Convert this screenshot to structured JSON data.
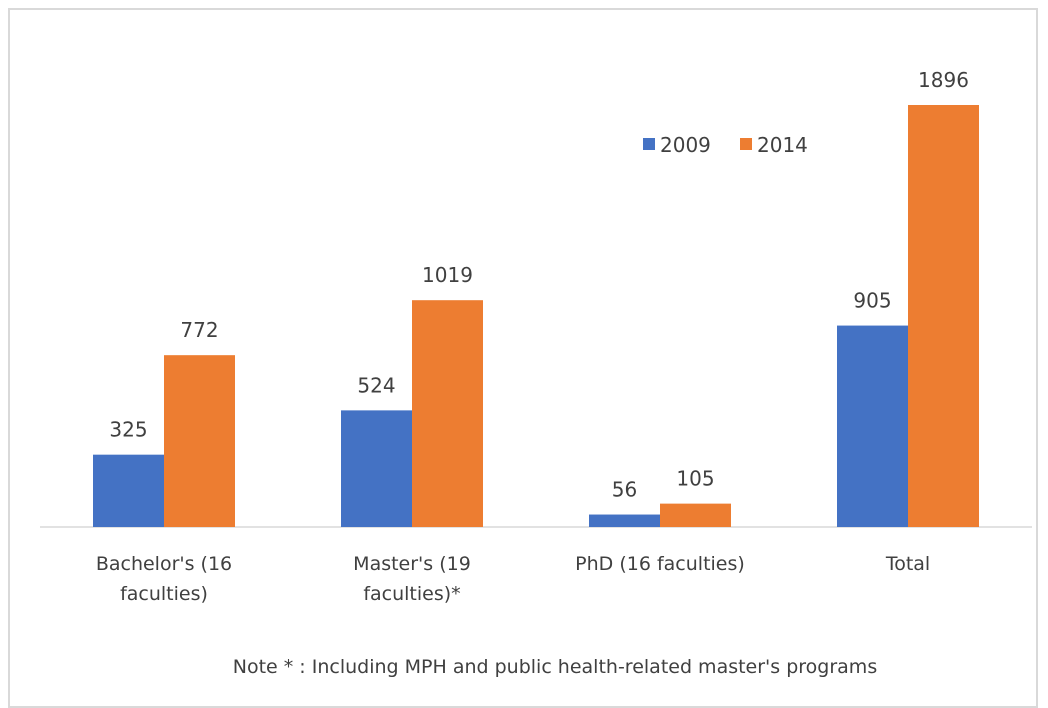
{
  "chart_data": {
    "type": "bar",
    "categories": [
      "Bachelor's (16 faculties)",
      "Master's (19 faculties)*",
      "PhD (16 faculties)",
      "Total"
    ],
    "series": [
      {
        "name": "2009",
        "color": "#4472c4",
        "values": [
          325,
          524,
          56,
          905
        ]
      },
      {
        "name": "2014",
        "color": "#ed7d31",
        "values": [
          772,
          1019,
          105,
          1896
        ]
      }
    ],
    "annotation": "Note * : Including MPH and public health-related master's programs"
  }
}
